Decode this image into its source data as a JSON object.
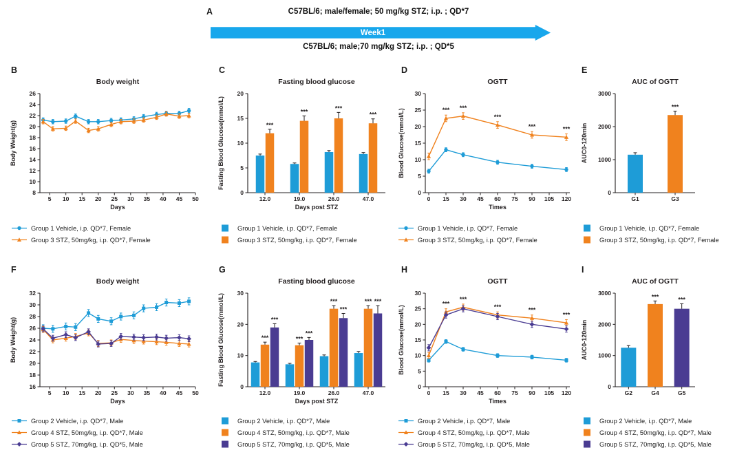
{
  "panel_a": {
    "label": "A",
    "top_text": "C57BL/6; male/female; 50 mg/kg STZ; i.p. ; QD*7",
    "arrow_label": "Week1",
    "bottom_text": "C57BL/6; male;70 mg/kg STZ; i.p. ; QD*5",
    "arrow_color": "#18a7ec"
  },
  "colors": {
    "blue": "#1e9cd7",
    "orange": "#f0821e",
    "purple": "#4a3c92"
  },
  "chart_data": [
    {
      "id": "B",
      "panel": "B",
      "type": "line",
      "title": "Body weight",
      "xlabel": "Days",
      "ylabel": "Body Weight(g)",
      "xlim": [
        2,
        50
      ],
      "xticks": [
        5,
        10,
        15,
        20,
        25,
        30,
        35,
        40,
        45,
        50
      ],
      "ylim": [
        8,
        26
      ],
      "yticks": [
        8,
        10,
        12,
        14,
        16,
        18,
        20,
        22,
        24,
        26
      ],
      "x": [
        3,
        6,
        10,
        13,
        17,
        20,
        24,
        27,
        31,
        34,
        38,
        41,
        45,
        48
      ],
      "series": [
        {
          "name": "Group 1 Vehicle, i.p. QD*7, Female",
          "color": "#1e9cd7",
          "marker": "circle",
          "err": 0.4,
          "values": [
            21.2,
            20.9,
            21.0,
            21.9,
            20.9,
            20.9,
            21.1,
            21.2,
            21.4,
            21.8,
            22.2,
            22.4,
            22.4,
            22.9
          ]
        },
        {
          "name": "Group 3 STZ, 50mg/kg, i.p. QD*7, Female",
          "color": "#f0821e",
          "marker": "triangle",
          "err": 0.4,
          "values": [
            20.9,
            19.6,
            19.7,
            21.0,
            19.3,
            19.6,
            20.4,
            20.9,
            21.0,
            21.2,
            21.7,
            22.3,
            21.9,
            22.0
          ]
        }
      ],
      "legend": [
        {
          "label": "Group 1 Vehicle, i.p. QD*7, Female",
          "color": "#1e9cd7",
          "marker": "circle"
        },
        {
          "label": "Group 3 STZ, 50mg/kg, i.p. QD*7, Female",
          "color": "#f0821e",
          "marker": "triangle"
        }
      ]
    },
    {
      "id": "C",
      "panel": "C",
      "type": "bar",
      "title": "Fasting blood glucose",
      "xlabel": "Days post STZ",
      "ylabel": "Fasting Blood Glucose(mmol/L)",
      "categories": [
        "12.0",
        "19.0",
        "26.0",
        "47.0"
      ],
      "ylim": [
        0,
        20
      ],
      "yticks": [
        0,
        5,
        10,
        15,
        20
      ],
      "series": [
        {
          "name": "Group 1 Vehicle, i.p. QD*7, Female",
          "color": "#1e9cd7",
          "values": [
            7.5,
            5.8,
            8.2,
            7.8
          ],
          "errs": [
            0.3,
            0.2,
            0.3,
            0.3
          ],
          "sigs": [
            "",
            "",
            "",
            ""
          ]
        },
        {
          "name": "Group 3 STZ, 50mg/kg, i.p. QD*7, Female",
          "color": "#f0821e",
          "values": [
            12.0,
            14.5,
            15.0,
            14.0
          ],
          "errs": [
            0.8,
            1.0,
            1.2,
            0.9
          ],
          "sigs": [
            "***",
            "***",
            "***",
            "***"
          ]
        }
      ],
      "legend": [
        {
          "label": "Group 1 Vehicle, i.p. QD*7, Female",
          "color": "#1e9cd7",
          "marker": "rect"
        },
        {
          "label": "Group 3 STZ, 50mg/kg, i.p. QD*7, Female",
          "color": "#f0821e",
          "marker": "rect"
        }
      ]
    },
    {
      "id": "D",
      "panel": "D",
      "type": "line",
      "title": "OGTT",
      "xlabel": "Times",
      "ylabel": "Blood Glucose(mmol/L)",
      "xlim": [
        -3,
        123
      ],
      "xticks": [
        0,
        15,
        30,
        45,
        60,
        75,
        90,
        105,
        120
      ],
      "ylim": [
        0,
        30
      ],
      "yticks": [
        0,
        5,
        10,
        15,
        20,
        25,
        30
      ],
      "x": [
        0,
        15,
        30,
        60,
        90,
        120
      ],
      "series": [
        {
          "name": "Group 1 Vehicle, i.p. QD*7, Female",
          "color": "#1e9cd7",
          "marker": "circle",
          "err": 0.6,
          "values": [
            6.5,
            13.0,
            11.5,
            9.2,
            8.0,
            7.0
          ]
        },
        {
          "name": "Group 3 STZ, 50mg/kg, i.p. QD*7, Female",
          "color": "#f0821e",
          "marker": "triangle",
          "err": 1.0,
          "values": [
            11.0,
            22.5,
            23.2,
            20.5,
            17.5,
            16.8
          ]
        }
      ],
      "sig": [
        {
          "x": 15,
          "label": "***"
        },
        {
          "x": 30,
          "label": "***"
        },
        {
          "x": 60,
          "label": "***"
        },
        {
          "x": 90,
          "label": "***"
        },
        {
          "x": 120,
          "label": "***"
        }
      ],
      "legend": [
        {
          "label": "Group 1 Vehicle, i.p. QD*7, Female",
          "color": "#1e9cd7",
          "marker": "circle"
        },
        {
          "label": "Group 3 STZ, 50mg/kg, i.p. QD*7, Female",
          "color": "#f0821e",
          "marker": "triangle"
        }
      ]
    },
    {
      "id": "E",
      "panel": "E",
      "type": "bar",
      "title": "AUC of OGTT",
      "xlabel": "",
      "ylabel": "AUC0-120min",
      "categories": [
        "G1",
        "G3"
      ],
      "ylim": [
        0,
        3000
      ],
      "yticks": [
        0,
        1000,
        2000,
        3000
      ],
      "values": [
        1150,
        2350
      ],
      "errs": [
        60,
        120
      ],
      "sigs": [
        "",
        "***"
      ],
      "bar_colors": [
        "#1e9cd7",
        "#f0821e"
      ],
      "legend": [
        {
          "label": "Group 1 Vehicle, i.p. QD*7, Female",
          "color": "#1e9cd7",
          "marker": "rect"
        },
        {
          "label": "Group 3 STZ, 50mg/kg, i.p. QD*7, Female",
          "color": "#f0821e",
          "marker": "rect"
        }
      ]
    },
    {
      "id": "F",
      "panel": "F",
      "type": "line",
      "title": "Body weight",
      "xlabel": "Days",
      "ylabel": "Body Weight(g)",
      "xlim": [
        2,
        50
      ],
      "xticks": [
        5,
        10,
        15,
        20,
        25,
        30,
        35,
        40,
        45,
        50
      ],
      "ylim": [
        16,
        32
      ],
      "yticks": [
        16,
        18,
        20,
        22,
        24,
        26,
        28,
        30,
        32
      ],
      "x": [
        3,
        6,
        10,
        13,
        17,
        20,
        24,
        27,
        31,
        34,
        38,
        41,
        45,
        48
      ],
      "series": [
        {
          "name": "Group 2 Vehicle, i.p. QD*7, Male",
          "color": "#1e9cd7",
          "marker": "square",
          "err": 0.6,
          "values": [
            26.0,
            25.9,
            26.3,
            26.2,
            28.6,
            27.6,
            27.2,
            28.0,
            28.2,
            29.4,
            29.6,
            30.4,
            30.3,
            30.6
          ]
        },
        {
          "name": "Group 4 STZ, 50mg/kg, i.p. QD*7, Male",
          "color": "#f0821e",
          "marker": "triangle",
          "err": 0.5,
          "values": [
            25.8,
            24.0,
            24.3,
            24.6,
            25.2,
            23.4,
            23.5,
            24.1,
            23.9,
            23.8,
            23.7,
            23.6,
            23.4,
            23.3
          ]
        },
        {
          "name": "Group 5 STZ, 70mg/kg, i.p. QD*5, Male",
          "color": "#4a3c92",
          "marker": "diamond",
          "err": 0.5,
          "values": [
            25.9,
            24.3,
            24.9,
            24.4,
            25.4,
            23.3,
            23.4,
            24.6,
            24.5,
            24.4,
            24.5,
            24.3,
            24.4,
            24.2
          ]
        }
      ],
      "legend": [
        {
          "label": "Group 2 Vehicle, i.p. QD*7, Male",
          "color": "#1e9cd7",
          "marker": "square"
        },
        {
          "label": "Group 4 STZ, 50mg/kg, i.p. QD*7, Male",
          "color": "#f0821e",
          "marker": "triangle"
        },
        {
          "label": "Group 5 STZ, 70mg/kg, i.p. QD*5, Male",
          "color": "#4a3c92",
          "marker": "diamond"
        }
      ]
    },
    {
      "id": "G",
      "panel": "G",
      "type": "bar",
      "title": "Fasting blood glucose",
      "xlabel": "Days post STZ",
      "ylabel": "Fasting Blood Glucose(mmol/L)",
      "categories": [
        "12.0",
        "19.0",
        "26.0",
        "47.0"
      ],
      "ylim": [
        0,
        30
      ],
      "yticks": [
        0,
        10,
        20,
        30
      ],
      "series": [
        {
          "name": "Group 2 Vehicle, i.p. QD*7, Male",
          "color": "#1e9cd7",
          "values": [
            7.8,
            7.2,
            9.8,
            10.8
          ],
          "errs": [
            0.3,
            0.3,
            0.4,
            0.5
          ],
          "sigs": [
            "",
            "",
            "",
            ""
          ]
        },
        {
          "name": "Group 4 STZ, 50mg/kg, i.p. QD*7, Male",
          "color": "#f0821e",
          "values": [
            13.5,
            13.3,
            25.0,
            25.0
          ],
          "errs": [
            0.8,
            0.7,
            1.0,
            1.0
          ],
          "sigs": [
            "***",
            "***",
            "***",
            "***"
          ]
        },
        {
          "name": "Group 5 STZ, 70mg/kg, i.p. QD*5, Male",
          "color": "#4a3c92",
          "values": [
            19.0,
            15.0,
            22.0,
            23.5
          ],
          "errs": [
            1.2,
            0.8,
            1.5,
            2.5
          ],
          "sigs": [
            "***",
            "***",
            "***",
            "***"
          ]
        }
      ],
      "legend": [
        {
          "label": "Group 2 Vehicle, i.p. QD*7, Male",
          "color": "#1e9cd7",
          "marker": "rect"
        },
        {
          "label": "Group 4 STZ, 50mg/kg, i.p. QD*7, Male",
          "color": "#f0821e",
          "marker": "rect"
        },
        {
          "label": "Group 5 STZ, 70mg/kg, i.p. QD*5, Male",
          "color": "#4a3c92",
          "marker": "rect"
        }
      ]
    },
    {
      "id": "H",
      "panel": "H",
      "type": "line",
      "title": "OGTT",
      "xlabel": "Times",
      "ylabel": "Blood Glucose(mmol/L)",
      "xlim": [
        -3,
        123
      ],
      "xticks": [
        0,
        15,
        30,
        45,
        60,
        75,
        90,
        105,
        120
      ],
      "ylim": [
        0,
        30
      ],
      "yticks": [
        0,
        5,
        10,
        15,
        20,
        25,
        30
      ],
      "x": [
        0,
        15,
        30,
        60,
        90,
        120
      ],
      "series": [
        {
          "name": "Group 2 Vehicle, i.p. QD*7, Male",
          "color": "#1e9cd7",
          "marker": "square",
          "err": 0.6,
          "values": [
            8.5,
            14.5,
            12.0,
            10.0,
            9.5,
            8.5
          ]
        },
        {
          "name": "Group 4 STZ, 50mg/kg, i.p. QD*7, Male",
          "color": "#f0821e",
          "marker": "triangle",
          "err": 1.0,
          "values": [
            10.0,
            24.0,
            25.5,
            23.0,
            22.0,
            20.5
          ]
        },
        {
          "name": "Group 5 STZ, 70mg/kg, i.p. QD*5, Male",
          "color": "#4a3c92",
          "marker": "diamond",
          "err": 1.0,
          "values": [
            12.5,
            23.0,
            25.0,
            22.5,
            20.0,
            18.5
          ]
        }
      ],
      "sig": [
        {
          "x": 15,
          "label": "***"
        },
        {
          "x": 30,
          "label": "***"
        },
        {
          "x": 60,
          "label": "***"
        },
        {
          "x": 90,
          "label": "***"
        },
        {
          "x": 120,
          "label": "***"
        }
      ],
      "legend": [
        {
          "label": "Group 2 Vehicle, i.p. QD*7, Male",
          "color": "#1e9cd7",
          "marker": "square"
        },
        {
          "label": "Group 4 STZ, 50mg/kg, i.p. QD*7, Male",
          "color": "#f0821e",
          "marker": "triangle"
        },
        {
          "label": "Group 5 STZ, 70mg/kg, i.p. QD*5, Male",
          "color": "#4a3c92",
          "marker": "diamond"
        }
      ]
    },
    {
      "id": "I",
      "panel": "I",
      "type": "bar",
      "title": "AUC of OGTT",
      "xlabel": "",
      "ylabel": "AUC0-120min",
      "categories": [
        "G2",
        "G4",
        "G5"
      ],
      "ylim": [
        0,
        3000
      ],
      "yticks": [
        0,
        1000,
        2000,
        3000
      ],
      "values": [
        1250,
        2650,
        2500
      ],
      "errs": [
        70,
        100,
        160
      ],
      "sigs": [
        "",
        "***",
        "***"
      ],
      "bar_colors": [
        "#1e9cd7",
        "#f0821e",
        "#4a3c92"
      ],
      "legend": [
        {
          "label": "Group 2 Vehicle, i.p. QD*7, Male",
          "color": "#1e9cd7",
          "marker": "rect"
        },
        {
          "label": "Group 4 STZ, 50mg/kg, i.p. QD*7, Male",
          "color": "#f0821e",
          "marker": "rect"
        },
        {
          "label": "Group 5 STZ, 70mg/kg, i.p. QD*5, Male",
          "color": "#4a3c92",
          "marker": "rect"
        }
      ]
    }
  ]
}
